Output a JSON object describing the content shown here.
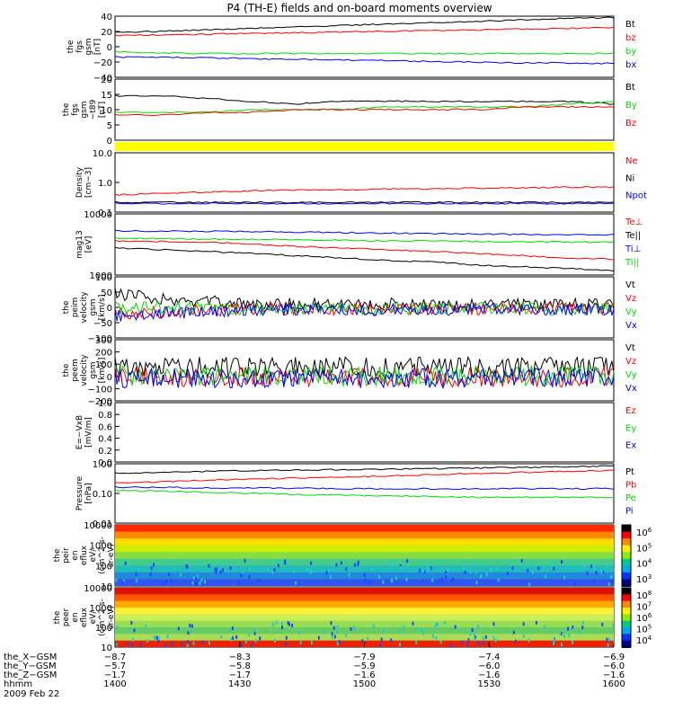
{
  "title": "P4 (TH-E) fields and on-board moments overview",
  "date": "2009 Feb 22",
  "colors": {
    "black": "#000000",
    "red": "#ff0000",
    "green": "#00dd00",
    "blue": "#0000ff",
    "yellow": "#ffff00"
  },
  "chart_data": [
    {
      "type": "line",
      "ylabel": [
        "the",
        "fgs",
        "gsm",
        "[nT]"
      ],
      "yticks": [
        "40",
        "20",
        "0",
        "−20",
        "−40"
      ],
      "ylim": [
        -40,
        45
      ],
      "series": [
        {
          "name": "Bt",
          "color": "#000000",
          "y": [
            22,
            24,
            26,
            28,
            30,
            32,
            34,
            36,
            38,
            40,
            42,
            43
          ]
        },
        {
          "name": "bz",
          "color": "#ff0000",
          "y": [
            18,
            19,
            20,
            21,
            22,
            23,
            24,
            25,
            26,
            27,
            28,
            29
          ]
        },
        {
          "name": "by",
          "color": "#00dd00",
          "y": [
            -5,
            -6,
            -7,
            -7,
            -7,
            -7,
            -7,
            -7,
            -7,
            -7,
            -7,
            -7
          ]
        },
        {
          "name": "bx",
          "color": "#0000ff",
          "y": [
            -12,
            -12,
            -13,
            -14,
            -15,
            -16,
            -17,
            -18,
            -19,
            -20,
            -20,
            -21
          ]
        }
      ]
    },
    {
      "type": "line",
      "ylabel": [
        "the",
        "fgs",
        "gsm",
        "−t89",
        "[nT]"
      ],
      "yticks": [
        "20",
        "15",
        "10",
        "5",
        "0"
      ],
      "ylim": [
        -2,
        20
      ],
      "series": [
        {
          "name": "Bt",
          "color": "#000000",
          "y": [
            14,
            14,
            13,
            12,
            11,
            12,
            12,
            12,
            12,
            12,
            12,
            11
          ]
        },
        {
          "name": "By",
          "color": "#00dd00",
          "y": [
            8,
            8,
            8,
            9,
            9,
            9,
            10,
            10,
            10,
            10,
            11,
            12
          ]
        },
        {
          "name": "Bz",
          "color": "#ff0000",
          "y": [
            7,
            7,
            8,
            8,
            9,
            9,
            9,
            9,
            9,
            10,
            10,
            10
          ]
        }
      ]
    },
    {
      "type": "line",
      "ylabel": [
        "Density",
        "[cm−3]"
      ],
      "yticks": [
        "10.0",
        "1.0",
        "0.1"
      ],
      "ylim": [
        0.1,
        12
      ],
      "log": true,
      "series": [
        {
          "name": "Ne",
          "color": "#ff0000",
          "y": [
            0.4,
            0.45,
            0.5,
            0.55,
            0.6,
            0.6,
            0.65,
            0.65,
            0.7,
            0.7,
            0.75,
            0.75
          ]
        },
        {
          "name": "Ni",
          "color": "#000000",
          "y": [
            0.22,
            0.22,
            0.22,
            0.22,
            0.22,
            0.22,
            0.22,
            0.22,
            0.22,
            0.22,
            0.22,
            0.22
          ]
        },
        {
          "name": "Npot",
          "color": "#0000ff",
          "y": [
            0.2,
            0.2,
            0.2,
            0.2,
            0.2,
            0.2,
            0.2,
            0.2,
            0.2,
            0.2,
            0.2,
            0.2
          ]
        }
      ]
    },
    {
      "type": "line",
      "ylabel": [
        "mag13",
        "[eV]"
      ],
      "yticks": [
        "10000",
        "1000"
      ],
      "ylim": [
        1000,
        12000
      ],
      "log": true,
      "series": [
        {
          "name": "Te⊥",
          "color": "#ff0000",
          "y": [
            4000,
            3900,
            3800,
            3500,
            3200,
            3000,
            2800,
            2600,
            2400,
            2200,
            2000,
            1900
          ]
        },
        {
          "name": "Te||",
          "color": "#000000",
          "y": [
            3000,
            2800,
            2600,
            2400,
            2200,
            2000,
            1800,
            1700,
            1500,
            1400,
            1300,
            1200
          ]
        },
        {
          "name": "Ti⊥",
          "color": "#0000ff",
          "y": [
            6000,
            6000,
            5900,
            5800,
            5700,
            5600,
            5500,
            5400,
            5300,
            5200,
            5200,
            5100
          ]
        },
        {
          "name": "Ti||",
          "color": "#00dd00",
          "y": [
            4500,
            4400,
            4300,
            4300,
            4200,
            4100,
            4000,
            4000,
            3900,
            3900,
            3800,
            3800
          ]
        }
      ]
    },
    {
      "type": "line",
      "ylabel": [
        "the",
        "peim",
        "velocity",
        "gsm",
        "[km/s]"
      ],
      "yticks": [
        "100",
        "50",
        "0",
        "−50",
        "−100"
      ],
      "ylim": [
        -100,
        110
      ],
      "series": [
        {
          "name": "Vt",
          "color": "#000000",
          "y": [
            50,
            35,
            25,
            20,
            18,
            16,
            16,
            15,
            15,
            14,
            14,
            14
          ]
        },
        {
          "name": "Vz",
          "color": "#ff0000",
          "y": [
            -20,
            -10,
            -5,
            0,
            0,
            0,
            0,
            0,
            0,
            0,
            0,
            0
          ]
        },
        {
          "name": "Vy",
          "color": "#00dd00",
          "y": [
            5,
            3,
            2,
            0,
            0,
            0,
            0,
            0,
            0,
            0,
            0,
            0
          ]
        },
        {
          "name": "Vx",
          "color": "#0000ff",
          "y": [
            -25,
            -15,
            -8,
            -5,
            -3,
            -2,
            -2,
            -2,
            -2,
            -2,
            -2,
            -2
          ]
        }
      ]
    },
    {
      "type": "line",
      "ylabel": [
        "the",
        "peem",
        "velocity",
        "gsm",
        "[km/s]"
      ],
      "yticks": [
        "300",
        "200",
        "100",
        "0",
        "−100",
        "−200"
      ],
      "ylim": [
        -220,
        320
      ],
      "series": [
        {
          "name": "Vt",
          "color": "#000000",
          "y": [
            80,
            80,
            80,
            80,
            80,
            80,
            80,
            80,
            80,
            80,
            80,
            80
          ]
        },
        {
          "name": "Vz",
          "color": "#ff0000",
          "y": [
            -10,
            -10,
            -10,
            -10,
            -10,
            -10,
            -10,
            -10,
            -10,
            -10,
            -10,
            -10
          ]
        },
        {
          "name": "Vy",
          "color": "#00dd00",
          "y": [
            0,
            0,
            0,
            0,
            0,
            0,
            0,
            0,
            0,
            0,
            0,
            0
          ]
        },
        {
          "name": "Vx",
          "color": "#0000ff",
          "y": [
            -20,
            -20,
            -20,
            -20,
            -20,
            -20,
            -20,
            -20,
            -20,
            -20,
            -20,
            -20
          ]
        }
      ]
    },
    {
      "type": "line",
      "ylabel": [
        "E=−VxB",
        "[mV/m]"
      ],
      "yticks": [
        "1.0",
        "0.8",
        "0.6",
        "0.4",
        "0.2",
        "0.0"
      ],
      "ylim": [
        0,
        1
      ],
      "legend": [
        "Ez",
        "Ey",
        "Ex"
      ],
      "legend_colors": [
        "#ff0000",
        "#00dd00",
        "#0000ff"
      ]
    },
    {
      "type": "line",
      "ylabel": [
        "Pressure",
        "[nPa]"
      ],
      "yticks": [
        "1.00",
        "0.10",
        "0.01"
      ],
      "ylim": [
        0.01,
        1.2
      ],
      "log": true,
      "series": [
        {
          "name": "Pt",
          "color": "#000000",
          "y": [
            0.55,
            0.6,
            0.65,
            0.7,
            0.72,
            0.75,
            0.78,
            0.8,
            0.85,
            0.9,
            0.95,
            1.0
          ]
        },
        {
          "name": "Pb",
          "color": "#ff0000",
          "y": [
            0.25,
            0.28,
            0.32,
            0.35,
            0.38,
            0.4,
            0.45,
            0.5,
            0.55,
            0.6,
            0.65,
            0.7
          ]
        },
        {
          "name": "Pe",
          "color": "#00dd00",
          "y": [
            0.14,
            0.13,
            0.12,
            0.11,
            0.1,
            0.095,
            0.09,
            0.085,
            0.08,
            0.08,
            0.08,
            0.08
          ]
        },
        {
          "name": "Pi",
          "color": "#0000ff",
          "y": [
            0.18,
            0.18,
            0.17,
            0.17,
            0.17,
            0.16,
            0.16,
            0.16,
            0.16,
            0.16,
            0.16,
            0.16
          ]
        }
      ]
    },
    {
      "type": "heatmap",
      "ylabel": [
        "the",
        "peir",
        "en",
        "eflux",
        "eV/",
        "(cm^2-s-",
        "sr-eV)"
      ],
      "yticks": [
        "10000",
        "1000",
        "100",
        "10"
      ],
      "colorbar_ticks": [
        "10^6",
        "10^5",
        "10^4",
        "10^3"
      ]
    },
    {
      "type": "heatmap",
      "ylabel": [
        "the",
        "peer",
        "en",
        "eflux",
        "eV/",
        "(cm^2-s-",
        "sr-eV)"
      ],
      "yticks": [
        "10000",
        "1000",
        "100",
        "10"
      ],
      "colorbar_ticks": [
        "10^8",
        "10^7",
        "10^6",
        "10^5",
        "10^4"
      ]
    }
  ],
  "x_axis": {
    "ticks": [
      "1400",
      "1430",
      "1500",
      "1530",
      "1600"
    ],
    "rows": [
      {
        "label": "the_X−GSM",
        "values": [
          "−8.7",
          "−8.3",
          "−7.9",
          "−7.4",
          "−6.9"
        ]
      },
      {
        "label": "the_Y−GSM",
        "values": [
          "−5.7",
          "−5.8",
          "−5.9",
          "−6.0",
          "−6.0"
        ]
      },
      {
        "label": "the_Z−GSM",
        "values": [
          "−1.7",
          "−1.7",
          "−1.6",
          "−1.6",
          "−1.6"
        ]
      },
      {
        "label": "hhmm",
        "values": [
          "1400",
          "1430",
          "1500",
          "1530",
          "1600"
        ]
      }
    ]
  }
}
